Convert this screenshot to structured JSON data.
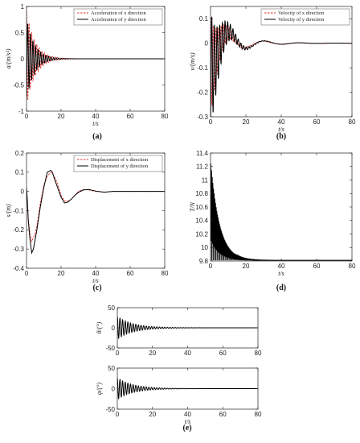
{
  "colors": {
    "x_series": "#e8302f",
    "y_series": "#000000",
    "axis": "#222222"
  },
  "chart_data": [
    {
      "id": "a",
      "type": "line",
      "caption": "(a)",
      "xlabel": "t/s",
      "ylabel": "a/(m/s²)",
      "xlim": [
        0,
        80
      ],
      "ylim": [
        -1,
        1
      ],
      "xticks": [
        0,
        20,
        40,
        60,
        80
      ],
      "yticks": [
        -1,
        -0.5,
        0,
        0.5,
        1
      ],
      "xtick_labels": [
        "0",
        "20",
        "40",
        "60",
        "80"
      ],
      "ytick_labels": [
        "-1",
        "-0.5",
        "0",
        "0.5",
        "1"
      ],
      "legend_position": "top-right",
      "series": [
        {
          "name": "Acceleration of x direction",
          "style": "dashed",
          "color": "#e8302f",
          "model": {
            "type": "damped_oscillation",
            "amplitude": 0.92,
            "period": 1.5,
            "decay": 0.2,
            "phase": 1.57
          }
        },
        {
          "name": "Acceleration of y direction",
          "style": "solid",
          "color": "#000000",
          "model": {
            "type": "damped_oscillation",
            "amplitude": 0.78,
            "period": 1.5,
            "decay": 0.22,
            "phase": -1.4
          }
        }
      ]
    },
    {
      "id": "b",
      "type": "line",
      "caption": "(b)",
      "xlabel": "t/s",
      "ylabel": "v/(m/s)",
      "xlim": [
        0,
        80
      ],
      "ylim": [
        -0.3,
        0.15
      ],
      "xticks": [
        0,
        20,
        40,
        60,
        80
      ],
      "yticks": [
        -0.3,
        -0.2,
        -0.1,
        0,
        0.1
      ],
      "xtick_labels": [
        "0",
        "20",
        "40",
        "60",
        "80"
      ],
      "ytick_labels": [
        "-0.3",
        "-0.2",
        "-0.1",
        "0",
        "0.1"
      ],
      "legend_position": "top-right",
      "series": [
        {
          "name": "Velocity of x direction",
          "style": "dashed",
          "color": "#e8302f",
          "model": {
            "type": "damped_oscillation",
            "amplitude": 0.2,
            "period": 1.5,
            "decay": 0.2,
            "phase": 1.2,
            "envelope": {
              "amplitude": 0.09,
              "period": 20,
              "decay": 0.08,
              "phase": -1.7
            }
          }
        },
        {
          "name": "Velocity of y direction",
          "style": "solid",
          "color": "#000000",
          "model": {
            "type": "damped_oscillation",
            "amplitude": 0.24,
            "period": 1.5,
            "decay": 0.18,
            "phase": -1.4,
            "envelope": {
              "amplitude": 0.11,
              "period": 20,
              "decay": 0.08,
              "phase": -1.9
            }
          }
        }
      ]
    },
    {
      "id": "c",
      "type": "line",
      "caption": "(c)",
      "xlabel": "t/s",
      "ylabel": "s/(m)",
      "xlim": [
        0,
        80
      ],
      "ylim": [
        -0.4,
        0.2
      ],
      "xticks": [
        0,
        20,
        40,
        60,
        80
      ],
      "yticks": [
        -0.4,
        -0.3,
        -0.2,
        -0.1,
        0,
        0.1,
        0.2
      ],
      "xtick_labels": [
        "0",
        "20",
        "40",
        "60",
        "80"
      ],
      "ytick_labels": [
        "-0.4",
        "-0.3",
        "-0.2",
        "-0.1",
        "0",
        "0.1",
        "0.2"
      ],
      "legend_position": "top-right",
      "series": [
        {
          "name": "Displacement of x direction",
          "style": "dashed",
          "color": "#e8302f",
          "points": [
            [
              0,
              0
            ],
            [
              0.5,
              -0.05
            ],
            [
              1,
              -0.14
            ],
            [
              2,
              -0.22
            ],
            [
              3,
              -0.26
            ],
            [
              4,
              -0.24
            ],
            [
              5,
              -0.22
            ],
            [
              6,
              -0.18
            ],
            [
              7,
              -0.12
            ],
            [
              8,
              -0.06
            ],
            [
              10,
              0.03
            ],
            [
              12,
              0.08
            ],
            [
              14,
              0.1
            ],
            [
              16,
              0.08
            ],
            [
              18,
              0.04
            ],
            [
              20,
              -0.02
            ],
            [
              22,
              -0.05
            ],
            [
              24,
              -0.05
            ],
            [
              26,
              -0.04
            ],
            [
              28,
              -0.02
            ],
            [
              30,
              0
            ],
            [
              33,
              0.01
            ],
            [
              36,
              0.008
            ],
            [
              40,
              0
            ],
            [
              45,
              -0.004
            ],
            [
              50,
              0
            ],
            [
              60,
              0
            ],
            [
              80,
              0
            ]
          ]
        },
        {
          "name": "Displacement of y direction",
          "style": "solid",
          "color": "#000000",
          "points": [
            [
              0,
              0.02
            ],
            [
              0.5,
              -0.05
            ],
            [
              1,
              -0.15
            ],
            [
              2,
              -0.25
            ],
            [
              3,
              -0.32
            ],
            [
              4,
              -0.3
            ],
            [
              5,
              -0.25
            ],
            [
              6,
              -0.2
            ],
            [
              7,
              -0.14
            ],
            [
              8,
              -0.08
            ],
            [
              10,
              0.02
            ],
            [
              12,
              0.1
            ],
            [
              14,
              0.11
            ],
            [
              15,
              0.1
            ],
            [
              16,
              0.07
            ],
            [
              18,
              0.02
            ],
            [
              20,
              -0.03
            ],
            [
              22,
              -0.06
            ],
            [
              24,
              -0.055
            ],
            [
              26,
              -0.04
            ],
            [
              28,
              -0.02
            ],
            [
              30,
              -0.005
            ],
            [
              33,
              0.008
            ],
            [
              36,
              0.01
            ],
            [
              40,
              0.002
            ],
            [
              45,
              -0.004
            ],
            [
              50,
              0
            ],
            [
              60,
              0
            ],
            [
              80,
              0
            ]
          ]
        }
      ]
    },
    {
      "id": "d",
      "type": "line",
      "caption": "(d)",
      "xlabel": "t/s",
      "ylabel": "T/N",
      "xlim": [
        0,
        80
      ],
      "ylim": [
        9.8,
        11.4
      ],
      "xticks": [
        0,
        20,
        40,
        60,
        80
      ],
      "yticks": [
        9.8,
        10,
        10.2,
        10.4,
        10.6,
        10.8,
        11,
        11.2,
        11.4
      ],
      "xtick_labels": [
        "0",
        "20",
        "40",
        "60",
        "80"
      ],
      "ytick_labels": [
        "9.8",
        "10",
        "10.2",
        "10.4",
        "10.6",
        "10.8",
        "11",
        "11.2",
        "11.4"
      ],
      "legend_position": "none",
      "series": [
        {
          "style": "solid",
          "color": "#000000",
          "model": {
            "type": "tension",
            "baseline": 9.81,
            "amplitude": 1.5,
            "period": 0.75,
            "decay": 0.2
          }
        }
      ]
    },
    {
      "id": "e1",
      "type": "line",
      "xlabel": "",
      "ylabel": "θ/(°)",
      "xlim": [
        0,
        80
      ],
      "ylim": [
        -50,
        50
      ],
      "xticks": [
        0,
        20,
        40,
        60,
        80
      ],
      "yticks": [
        -50,
        0,
        50
      ],
      "xtick_labels": [
        "0",
        "20",
        "40",
        "60",
        "80"
      ],
      "ytick_labels": [
        "-50",
        "0",
        "50"
      ],
      "legend_position": "none",
      "series": [
        {
          "style": "solid",
          "color": "#000000",
          "model": {
            "type": "damped_oscillation",
            "amplitude": 28,
            "period": 1.5,
            "decay": 0.11,
            "phase": 1.57
          }
        }
      ]
    },
    {
      "id": "e2",
      "type": "line",
      "caption": "(e)",
      "xlabel": "t/s",
      "ylabel": "φ/(°)",
      "xlim": [
        0,
        80
      ],
      "ylim": [
        -50,
        50
      ],
      "xticks": [
        0,
        20,
        40,
        60,
        80
      ],
      "yticks": [
        -50,
        0,
        50
      ],
      "xtick_labels": [
        "0",
        "20",
        "40",
        "60",
        "80"
      ],
      "ytick_labels": [
        "-50",
        "0",
        "50"
      ],
      "legend_position": "none",
      "series": [
        {
          "style": "solid",
          "color": "#000000",
          "model": {
            "type": "damped_oscillation",
            "amplitude": 26,
            "period": 1.5,
            "decay": 0.11,
            "phase": 1.57
          }
        }
      ]
    }
  ]
}
